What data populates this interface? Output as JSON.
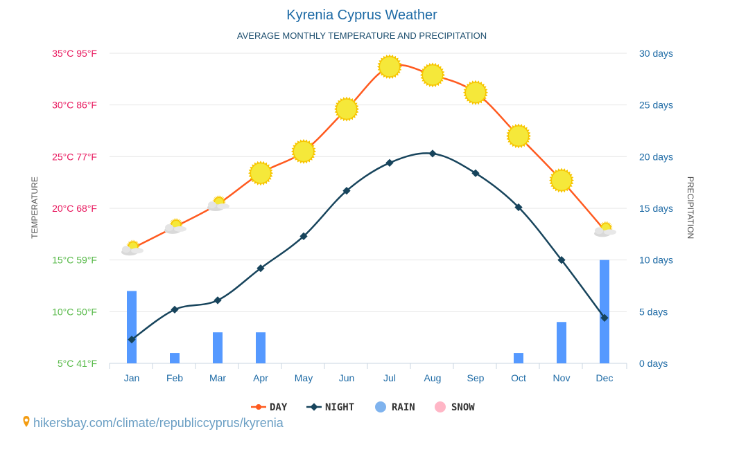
{
  "chart_data": {
    "type": "line",
    "title": "Kyrenia Cyprus Weather",
    "subtitle": "AVERAGE MONTHLY TEMPERATURE AND PRECIPITATION",
    "categories": [
      "Jan",
      "Feb",
      "Mar",
      "Apr",
      "May",
      "Jun",
      "Jul",
      "Aug",
      "Sep",
      "Oct",
      "Nov",
      "Dec"
    ],
    "left_axis": {
      "label": "TEMPERATURE",
      "range_c": [
        5,
        35
      ],
      "ticks": [
        "35°C 95°F",
        "30°C 86°F",
        "25°C 77°F",
        "20°C 68°F",
        "15°C 59°F",
        "10°C 50°F",
        "5°C 41°F"
      ],
      "tick_colors": [
        "#e8175d",
        "#e8175d",
        "#e8175d",
        "#e8175d",
        "#56b947",
        "#56b947",
        "#56b947"
      ]
    },
    "right_axis": {
      "label": "PRECIPITATION",
      "range_days": [
        0,
        30
      ],
      "ticks": [
        "30 days",
        "25 days",
        "20 days",
        "15 days",
        "10 days",
        "5 days",
        "0 days"
      ]
    },
    "grid": true,
    "series": [
      {
        "name": "DAY",
        "type": "line",
        "color": "#ff5a1f",
        "values": [
          16.1,
          18.2,
          20.4,
          23.4,
          25.5,
          29.6,
          33.7,
          32.9,
          31.2,
          27.0,
          22.7,
          17.9
        ],
        "icons": [
          "partly-cloudy-icon",
          "partly-cloudy-icon",
          "partly-cloudy-icon",
          "sun-icon",
          "sun-icon",
          "sun-icon",
          "sun-icon",
          "sun-icon",
          "sun-icon",
          "sun-icon",
          "sun-icon",
          "partly-cloudy-icon"
        ]
      },
      {
        "name": "NIGHT",
        "type": "line",
        "color": "#17445c",
        "values": [
          7.3,
          10.2,
          11.1,
          14.2,
          17.3,
          21.7,
          24.4,
          25.3,
          23.4,
          20.1,
          15.0,
          9.4
        ]
      },
      {
        "name": "RAIN",
        "type": "bar",
        "color": "#5599ff",
        "values": [
          7,
          1,
          3,
          3,
          0,
          0,
          0,
          0,
          0,
          1,
          4,
          10
        ]
      },
      {
        "name": "SNOW",
        "type": "bar",
        "color": "#ffb6c6",
        "values": [
          0,
          0,
          0,
          0,
          0,
          0,
          0,
          0,
          0,
          0,
          0,
          0
        ]
      }
    ],
    "legend": "bottom"
  },
  "source": "hikersbay.com/climate/republiccyprus/kyrenia"
}
